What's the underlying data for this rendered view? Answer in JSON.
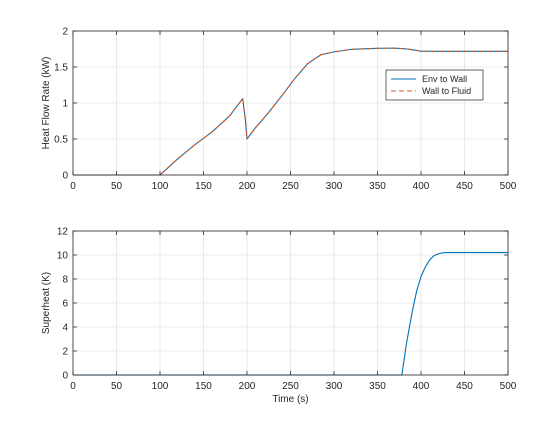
{
  "colors": {
    "env_to_wall": "#0072BD",
    "wall_to_fluid": "#D95319",
    "grid": "#dcdcdc",
    "axis": "#262626"
  },
  "chart_data": [
    {
      "type": "line",
      "ylabel": "Heat Flow Rate (kW)",
      "xlabel": "",
      "xlim": [
        0,
        500
      ],
      "ylim": [
        0,
        2
      ],
      "xticks": [
        0,
        50,
        100,
        150,
        200,
        250,
        300,
        350,
        400,
        450,
        500
      ],
      "yticks": [
        0,
        0.5,
        1,
        1.5,
        2
      ],
      "ytick_labels": [
        "0",
        "0.5",
        "1",
        "1.5",
        "2"
      ],
      "grid": true,
      "legend": {
        "placement": "right",
        "entries": [
          "Env to Wall",
          "Wall to Fluid"
        ]
      },
      "series": [
        {
          "name": "Env to Wall",
          "style": "solid",
          "color": "#0072BD",
          "x": [
            0,
            100,
            120,
            140,
            160,
            180,
            195,
            198,
            200,
            210,
            225,
            240,
            255,
            270,
            285,
            300,
            320,
            350,
            370,
            380,
            390,
            400,
            420,
            450,
            500
          ],
          "y": [
            0,
            0,
            0.22,
            0.42,
            0.6,
            0.82,
            1.06,
            0.78,
            0.5,
            0.66,
            0.87,
            1.1,
            1.34,
            1.55,
            1.67,
            1.71,
            1.745,
            1.76,
            1.762,
            1.755,
            1.74,
            1.72,
            1.718,
            1.718,
            1.718
          ]
        },
        {
          "name": "Wall to Fluid",
          "style": "dashed",
          "color": "#D95319",
          "x": [
            0,
            100,
            120,
            140,
            160,
            180,
            195,
            198,
            200,
            210,
            225,
            240,
            255,
            270,
            285,
            300,
            320,
            350,
            370,
            380,
            390,
            400,
            420,
            450,
            500
          ],
          "y": [
            0,
            0,
            0.22,
            0.42,
            0.6,
            0.82,
            1.06,
            0.78,
            0.5,
            0.66,
            0.87,
            1.1,
            1.34,
            1.55,
            1.67,
            1.71,
            1.745,
            1.76,
            1.762,
            1.755,
            1.74,
            1.72,
            1.718,
            1.718,
            1.718
          ]
        }
      ]
    },
    {
      "type": "line",
      "ylabel": "Superheat (K)",
      "xlabel": "Time (s)",
      "xlim": [
        0,
        500
      ],
      "ylim": [
        0,
        12
      ],
      "xticks": [
        0,
        50,
        100,
        150,
        200,
        250,
        300,
        350,
        400,
        450,
        500
      ],
      "yticks": [
        0,
        2,
        4,
        6,
        8,
        10,
        12
      ],
      "ytick_labels": [
        "0",
        "2",
        "4",
        "6",
        "8",
        "10",
        "12"
      ],
      "grid": true,
      "series": [
        {
          "style": "solid",
          "color": "#0072BD",
          "x": [
            0,
            378,
            383,
            390,
            395,
            400,
            405,
            410,
            415,
            420,
            425,
            430,
            450,
            500
          ],
          "y": [
            0,
            0,
            2.5,
            5.3,
            7.0,
            8.2,
            9.0,
            9.6,
            9.95,
            10.1,
            10.18,
            10.2,
            10.2,
            10.2
          ]
        }
      ]
    }
  ]
}
